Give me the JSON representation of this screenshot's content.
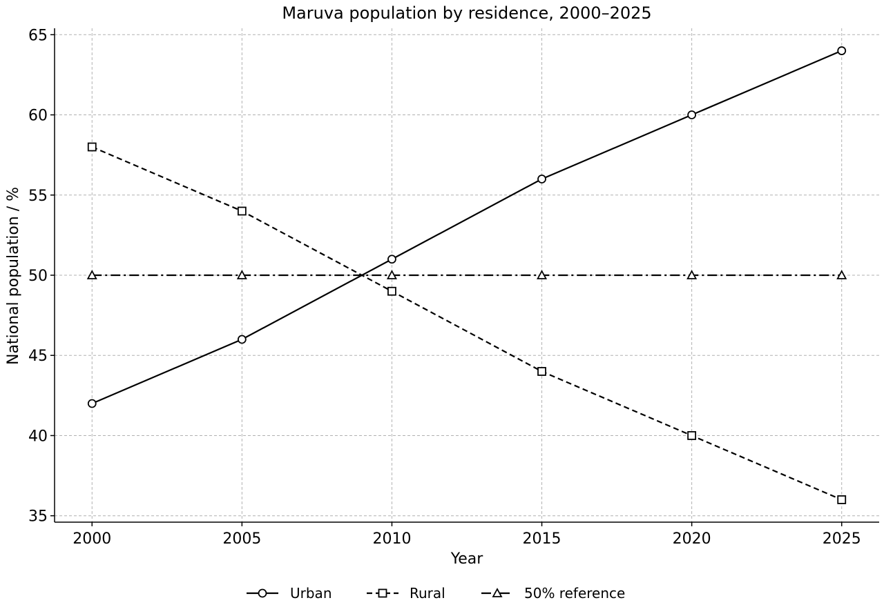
{
  "chart_data": {
    "type": "line",
    "title": "Maruva population by residence, 2000–2025",
    "xlabel": "Year",
    "ylabel": "National population / %",
    "x": [
      2000,
      2005,
      2010,
      2015,
      2020,
      2025
    ],
    "xticks": [
      "2000",
      "2005",
      "2010",
      "2015",
      "2020",
      "2025"
    ],
    "yticks": [
      "35",
      "40",
      "45",
      "50",
      "55",
      "60",
      "65"
    ],
    "xlim": [
      1998.75,
      2026.25
    ],
    "ylim": [
      34.6,
      65.4
    ],
    "grid": true,
    "legend_position": "bottom-center",
    "series": [
      {
        "name": "Urban",
        "values": [
          42,
          46,
          51,
          56,
          60,
          64
        ],
        "marker": "circle",
        "linestyle": "solid",
        "color": "#000000"
      },
      {
        "name": "Rural",
        "values": [
          58,
          54,
          49,
          44,
          40,
          36
        ],
        "marker": "square",
        "linestyle": "dashed",
        "color": "#000000"
      },
      {
        "name": "50% reference",
        "values": [
          50,
          50,
          50,
          50,
          50,
          50
        ],
        "marker": "triangle",
        "linestyle": "dashdot",
        "color": "#000000"
      }
    ]
  }
}
